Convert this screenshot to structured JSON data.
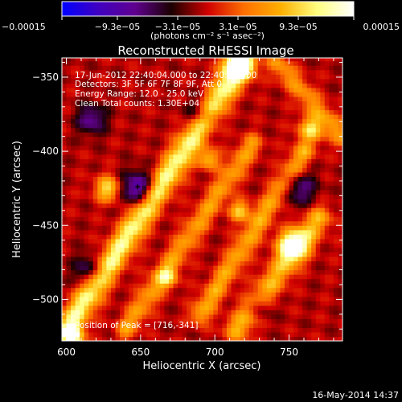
{
  "chart_data": {
    "type": "heatmap",
    "title": "Reconstructed RHESSI Image",
    "xlabel": "Heliocentric X (arcsec)",
    "ylabel": "Heliocentric Y (arcsec)",
    "xlim": [
      597,
      786
    ],
    "ylim": [
      -528,
      -337
    ],
    "x_ticks": [
      600,
      650,
      700,
      750
    ],
    "y_ticks": [
      -350,
      -400,
      -450,
      -500
    ],
    "x_tick_labels": [
      "600",
      "650",
      "700",
      "750"
    ],
    "y_tick_labels": [
      "−350",
      "−400",
      "−450",
      "−500"
    ],
    "colorbar": {
      "min": -0.00015,
      "max": 0.00015,
      "tick_values": [
        -0.00015,
        -9.3e-05,
        -3.1e-05,
        3.1e-05,
        9.3e-05,
        0.00015
      ],
      "tick_labels": [
        "−0.00015",
        "−9.3e−05",
        "−3.1e−05",
        "3.1e−05",
        "9.3e−05",
        "0.00015"
      ],
      "units": "(photons cm⁻² s⁻¹ asec⁻²)",
      "colors": [
        "#0000ff",
        "#4000c0",
        "#600090",
        "#1a0000",
        "#d00000",
        "#ff7000",
        "#ffb000",
        "#ffff80",
        "#ffffff"
      ]
    },
    "overlay": {
      "time": "17-Jun-2012 22:40:04.000 to 22:40:32.000",
      "detectors": "Detectors: 3F 5F 6F 7F 8F 9F, Att 0",
      "energy": "Energy Range: 12.0 - 25.0 keV",
      "clean": "Clean      Total counts: 1.30E+04",
      "peak": "Position of Peak = [716,-341]"
    },
    "features": [
      {
        "kind": "ridge",
        "x0": 600,
        "y0": -520,
        "x1": 717,
        "y1": -342,
        "intensity": 1.0,
        "width": 6
      },
      {
        "kind": "ridge",
        "x0": 640,
        "y0": -520,
        "x1": 725,
        "y1": -395,
        "intensity": 0.55,
        "width": 5
      },
      {
        "kind": "ridge",
        "x0": 690,
        "y0": -510,
        "x1": 760,
        "y1": -400,
        "intensity": 0.6,
        "width": 5
      },
      {
        "kind": "ridge",
        "x0": 715,
        "y0": -520,
        "x1": 770,
        "y1": -445,
        "intensity": 0.65,
        "width": 6
      },
      {
        "kind": "ridge",
        "x0": 742,
        "y0": -340,
        "x1": 786,
        "y1": -390,
        "intensity": 0.5,
        "width": 5
      },
      {
        "kind": "blob",
        "x": 716,
        "y": -341,
        "intensity": 1.2,
        "size": 7
      },
      {
        "kind": "blob",
        "x": 752,
        "y": -463,
        "intensity": 1.15,
        "size": 7
      },
      {
        "kind": "blob",
        "x": 765,
        "y": -385,
        "intensity": 0.85,
        "size": 6
      },
      {
        "kind": "blob",
        "x": 628,
        "y": -425,
        "intensity": 0.85,
        "size": 6
      },
      {
        "kind": "blob",
        "x": 717,
        "y": -440,
        "intensity": 0.75,
        "size": 5
      },
      {
        "kind": "blob",
        "x": 605,
        "y": -525,
        "intensity": 0.95,
        "size": 5
      },
      {
        "kind": "blob",
        "x": 696,
        "y": -405,
        "intensity": 0.7,
        "size": 5
      },
      {
        "kind": "blob",
        "x": 668,
        "y": -485,
        "intensity": 0.6,
        "size": 5
      }
    ],
    "negative_regions": [
      {
        "x": 648,
        "y": -425,
        "intensity": -0.8,
        "size": 8
      },
      {
        "x": 617,
        "y": -378,
        "intensity": -0.6,
        "size": 7
      },
      {
        "x": 757,
        "y": -425,
        "intensity": -0.55,
        "size": 8
      },
      {
        "x": 690,
        "y": -375,
        "intensity": -0.5,
        "size": 7
      },
      {
        "x": 615,
        "y": -480,
        "intensity": -0.55,
        "size": 7
      },
      {
        "x": 730,
        "y": -505,
        "intensity": -0.45,
        "size": 6
      }
    ],
    "marker": {
      "x": 648,
      "y": -424
    }
  },
  "footer": {
    "timestamp": "16-May-2014 14:37"
  }
}
